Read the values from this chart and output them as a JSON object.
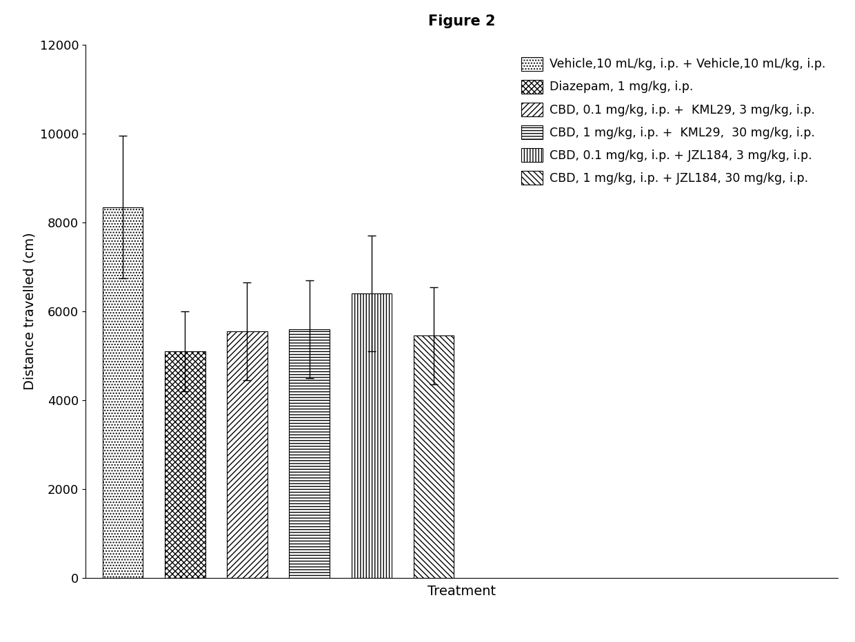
{
  "title": "Figure 2",
  "xlabel": "Treatment",
  "ylabel": "Distance travelled (cm)",
  "ylim": [
    0,
    12000
  ],
  "yticks": [
    0,
    2000,
    4000,
    6000,
    8000,
    10000,
    12000
  ],
  "bar_values": [
    8350,
    5100,
    5550,
    5600,
    6400,
    5450
  ],
  "bar_errors": [
    1600,
    900,
    1100,
    1100,
    1300,
    1100
  ],
  "legend_labels": [
    "Vehicle,10 mL/kg, i.p. + Vehicle,10 mL/kg, i.p.",
    "Diazepam, 1 mg/kg, i.p.",
    "CBD, 0.1 mg/kg, i.p. +  KML29, 3 mg/kg, i.p.",
    "CBD, 1 mg/kg, i.p. +  KML29,  30 mg/kg, i.p.",
    "CBD, 0.1 mg/kg, i.p. + JZL184, 3 mg/kg, i.p.",
    "CBD, 1 mg/kg, i.p. + JZL184, 30 mg/kg, i.p."
  ],
  "background_color": "#ffffff",
  "bar_edge_color": "#000000",
  "bar_face_color": "#ffffff",
  "title_fontsize": 15,
  "axis_fontsize": 14,
  "tick_fontsize": 13,
  "legend_fontsize": 12.5
}
